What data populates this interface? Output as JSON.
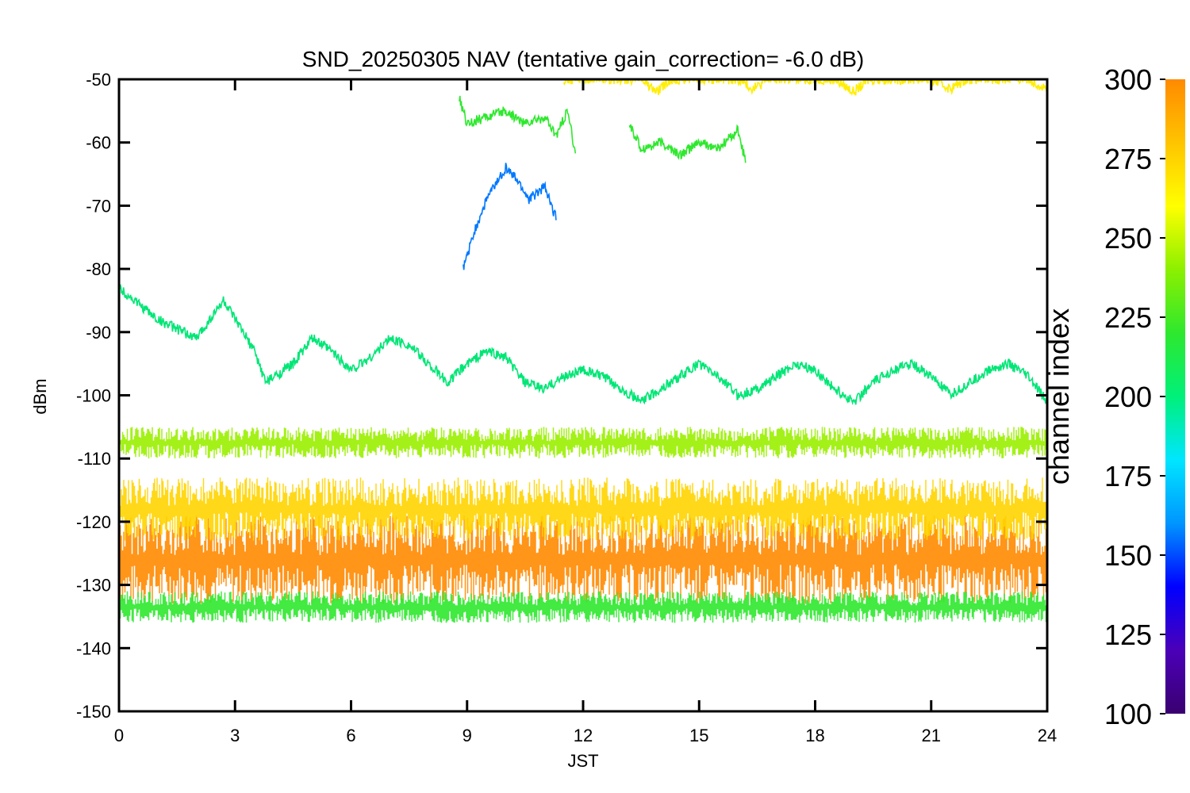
{
  "chart_data": {
    "type": "line",
    "title": "SND_20250305 NAV (tentative gain_correction= -6.0 dB)",
    "xlabel": "JST",
    "ylabel": "dBm",
    "xlim": [
      0,
      24
    ],
    "ylim": [
      -150,
      -50
    ],
    "xticks": [
      0,
      3,
      6,
      9,
      12,
      15,
      18,
      21,
      24
    ],
    "yticks": [
      -50,
      -60,
      -70,
      -80,
      -90,
      -100,
      -110,
      -120,
      -130,
      -140,
      -150
    ],
    "grid": false,
    "colorbar": {
      "label": "channel index",
      "range": [
        100,
        300
      ],
      "ticks": [
        100,
        125,
        150,
        175,
        200,
        225,
        250,
        275,
        300
      ],
      "colormap": [
        "#3a0070",
        "#4b00b8",
        "#0000ff",
        "#0096ff",
        "#00e6ff",
        "#00f07a",
        "#2ee82e",
        "#8cf000",
        "#ffff00",
        "#ffc400",
        "#ff8a00"
      ]
    },
    "series": [
      {
        "color": "#ff8a00",
        "band": [
          -133,
          -119
        ]
      },
      {
        "color": "#ffd400",
        "band": [
          -123,
          -113
        ]
      },
      {
        "color": "#2ee82e",
        "band": [
          -136,
          -131
        ]
      },
      {
        "color": "#9af000",
        "band": [
          -110,
          -105
        ]
      },
      {
        "color": "#00e676",
        "x": [
          0,
          1,
          2,
          2.7,
          3.5,
          3.8,
          4.5,
          5,
          5.5,
          6,
          6.5,
          7,
          7.5,
          8,
          8.5,
          9,
          9.5,
          10,
          10.5,
          11,
          11.5,
          12,
          12.5,
          13,
          13.5,
          14,
          14.5,
          15,
          15.5,
          16,
          16.5,
          17,
          17.5,
          18,
          18.5,
          19,
          19.5,
          20,
          20.5,
          21,
          21.5,
          22,
          22.5,
          23,
          23.5,
          24
        ],
        "y": [
          -83,
          -88,
          -91,
          -85,
          -93,
          -98,
          -95,
          -91,
          -93,
          -96,
          -94,
          -91,
          -92,
          -95,
          -98,
          -95,
          -93,
          -94,
          -98,
          -99,
          -97,
          -96,
          -97,
          -99,
          -101,
          -99,
          -97,
          -95,
          -97,
          -100,
          -99,
          -97,
          -95,
          -96,
          -99,
          -101,
          -98,
          -96,
          -95,
          -97,
          -100,
          -98,
          -96,
          -95,
          -97,
          -101
        ]
      },
      {
        "color": "#2ee82e",
        "x": [
          8.8,
          9,
          9.5,
          10,
          10.5,
          11,
          11.3,
          11.6,
          11.8
        ],
        "y": [
          -53,
          -57,
          -56,
          -55,
          -57,
          -56,
          -59,
          -55,
          -62
        ]
      },
      {
        "color": "#2ee82e",
        "x": [
          13.2,
          13.5,
          14,
          14.5,
          15,
          15.5,
          16,
          16.2
        ],
        "y": [
          -57,
          -61,
          -60,
          -62,
          -60,
          -61,
          -58,
          -63
        ]
      },
      {
        "color": "#0078ff",
        "x": [
          8.9,
          9.2,
          9.5,
          9.8,
          10,
          10.3,
          10.6,
          11,
          11.3
        ],
        "y": [
          -80,
          -74,
          -69,
          -66,
          -64,
          -66,
          -69,
          -67,
          -72
        ]
      },
      {
        "color": "#ffee00",
        "x": [
          11.5,
          13.5,
          13.9,
          14.3,
          16,
          16.4,
          16.8,
          18.5,
          19,
          19.4,
          21,
          21.5,
          21.9,
          23.5,
          24
        ],
        "y": [
          -50,
          -50,
          -52,
          -50,
          -50,
          -51.5,
          -50,
          -50,
          -52,
          -50,
          -50,
          -51.5,
          -50,
          -50,
          -51.5
        ]
      }
    ]
  }
}
